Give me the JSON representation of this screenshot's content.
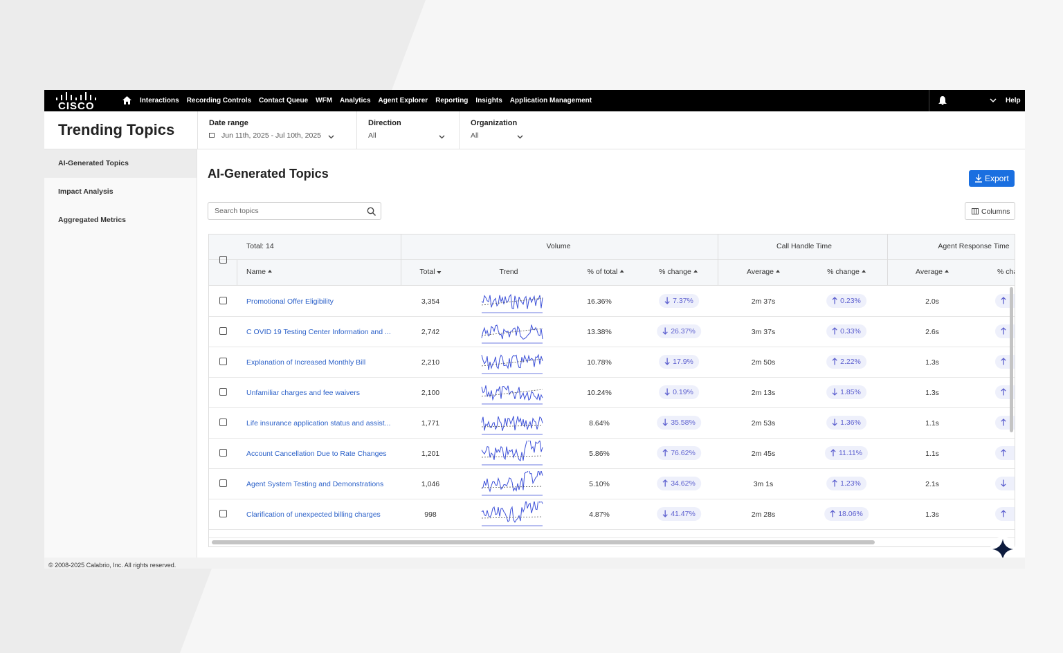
{
  "nav": {
    "logo": "CISCO",
    "items": [
      "Interactions",
      "Recording Controls",
      "Contact Queue",
      "WFM",
      "Analytics",
      "Agent Explorer",
      "Reporting",
      "Insights",
      "Application Management"
    ],
    "help": "Help"
  },
  "header": {
    "title": "Trending Topics",
    "filters": [
      {
        "label": "Date range",
        "value": "Jun 11th, 2025 - Jul 10th, 2025"
      },
      {
        "label": "Direction",
        "value": "All"
      },
      {
        "label": "Organization",
        "value": "All"
      }
    ]
  },
  "sidebar": {
    "items": [
      "AI-Generated Topics",
      "Impact Analysis",
      "Aggregated Metrics"
    ],
    "active": 0
  },
  "main": {
    "title": "AI-Generated Topics",
    "export": "Export",
    "search_placeholder": "Search topics",
    "columns_button": "Columns"
  },
  "table": {
    "total": "Total: 14",
    "groups": [
      "Volume",
      "Call Handle Time",
      "Agent Response Time"
    ],
    "columns": [
      "Name",
      "Total",
      "Trend",
      "% of total",
      "% change",
      "Average",
      "% change",
      "Average",
      "% change"
    ],
    "rows": [
      {
        "name": "Promotional Offer Eligibility",
        "total": "3,354",
        "pct": "16.36%",
        "vol_dir": "down",
        "vol_change": "7.37%",
        "cht_avg": "2m 37s",
        "cht_dir": "up",
        "cht_change": "0.23%",
        "art_avg": "2.0s",
        "art_dir": "up"
      },
      {
        "name": "C OVID 19 Testing Center Information and ...",
        "total": "2,742",
        "pct": "13.38%",
        "vol_dir": "down",
        "vol_change": "26.37%",
        "cht_avg": "3m 37s",
        "cht_dir": "up",
        "cht_change": "0.33%",
        "art_avg": "2.6s",
        "art_dir": "up"
      },
      {
        "name": "Explanation of Increased Monthly Bill",
        "total": "2,210",
        "pct": "10.78%",
        "vol_dir": "down",
        "vol_change": "17.9%",
        "cht_avg": "2m 50s",
        "cht_dir": "up",
        "cht_change": "2.22%",
        "art_avg": "1.3s",
        "art_dir": "up"
      },
      {
        "name": "Unfamiliar charges and fee waivers",
        "total": "2,100",
        "pct": "10.24%",
        "vol_dir": "down",
        "vol_change": "0.19%",
        "cht_avg": "2m 13s",
        "cht_dir": "down",
        "cht_change": "1.85%",
        "art_avg": "1.3s",
        "art_dir": "up"
      },
      {
        "name": "Life insurance application status and assist...",
        "total": "1,771",
        "pct": "8.64%",
        "vol_dir": "down",
        "vol_change": "35.58%",
        "cht_avg": "2m 53s",
        "cht_dir": "down",
        "cht_change": "1.36%",
        "art_avg": "1.1s",
        "art_dir": "up"
      },
      {
        "name": "Account Cancellation Due to Rate Changes",
        "total": "1,201",
        "pct": "5.86%",
        "vol_dir": "up",
        "vol_change": "76.62%",
        "cht_avg": "2m 45s",
        "cht_dir": "up",
        "cht_change": "11.11%",
        "art_avg": "1.1s",
        "art_dir": "up"
      },
      {
        "name": "Agent System Testing and Demonstrations",
        "total": "1,046",
        "pct": "5.10%",
        "vol_dir": "up",
        "vol_change": "34.62%",
        "cht_avg": "3m 1s",
        "cht_dir": "up",
        "cht_change": "1.23%",
        "art_avg": "2.1s",
        "art_dir": "down"
      },
      {
        "name": "Clarification of unexpected billing charges",
        "total": "998",
        "pct": "4.87%",
        "vol_dir": "down",
        "vol_change": "41.47%",
        "cht_avg": "2m 28s",
        "cht_dir": "up",
        "cht_change": "18.06%",
        "art_avg": "1.3s",
        "art_dir": "up"
      }
    ]
  },
  "footer": "© 2008-2025 Calabrio, Inc. All rights reserved."
}
